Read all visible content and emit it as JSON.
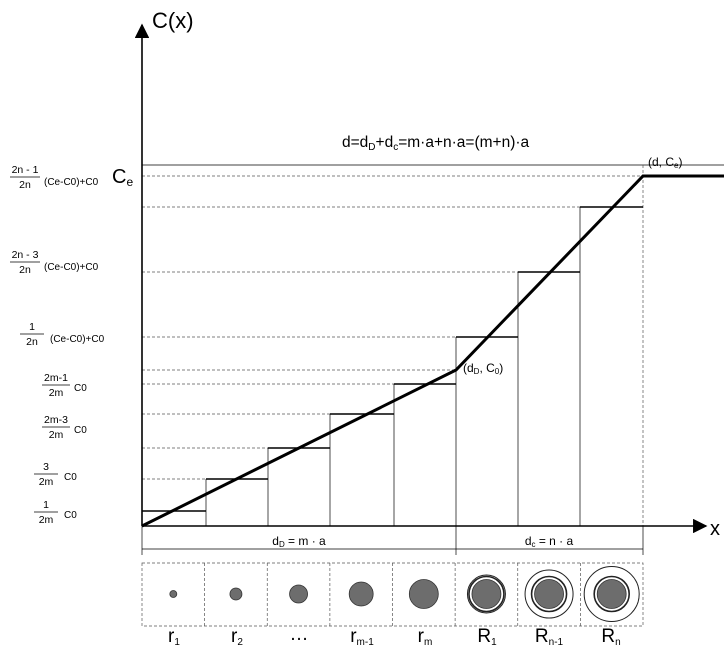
{
  "axes": {
    "y_label": "C(x)",
    "x_label": "x"
  },
  "equation": "d=dD+dc=m·a+n·a=(m+n)·a",
  "points": {
    "end": "(d, Ce)",
    "mid": "(dD, C0)"
  },
  "y_labels": {
    "ce": "Ce",
    "l_2n1": {
      "num": "2n - 1",
      "den": "2n",
      "rest": "(Ce-C0)+C0"
    },
    "l_2n3": {
      "num": "2n - 3",
      "den": "2n",
      "rest": "(Ce-C0)+C0"
    },
    "l_1n": {
      "num": "1",
      "den": "2n",
      "rest": "(Ce-C0)+C0"
    },
    "l_2m1": {
      "num": "2m-1",
      "den": "2m",
      "rest": "C0"
    },
    "l_2m3": {
      "num": "2m-3",
      "den": "2m",
      "rest": "C0"
    },
    "l_3m": {
      "num": "3",
      "den": "2m",
      "rest": "C0"
    },
    "l_1m": {
      "num": "1",
      "den": "2m",
      "rest": "C0"
    }
  },
  "dimensions": {
    "dD": "dD = m · a",
    "dc": "dc = n · a"
  },
  "cells": [
    {
      "label": "r1",
      "size": 1
    },
    {
      "label": "r2",
      "size": 2
    },
    {
      "label": "…",
      "size": 3
    },
    {
      "label": "rm-1",
      "size": 4
    },
    {
      "label": "rm",
      "size": 5
    },
    {
      "label": "R1",
      "size": 6
    },
    {
      "label": "Rn-1",
      "size": 7
    },
    {
      "label": "Rn",
      "size": 8
    }
  ],
  "colors": {
    "particle_fill": "#6d6d6d",
    "line": "#000000",
    "guide": "#555555"
  }
}
